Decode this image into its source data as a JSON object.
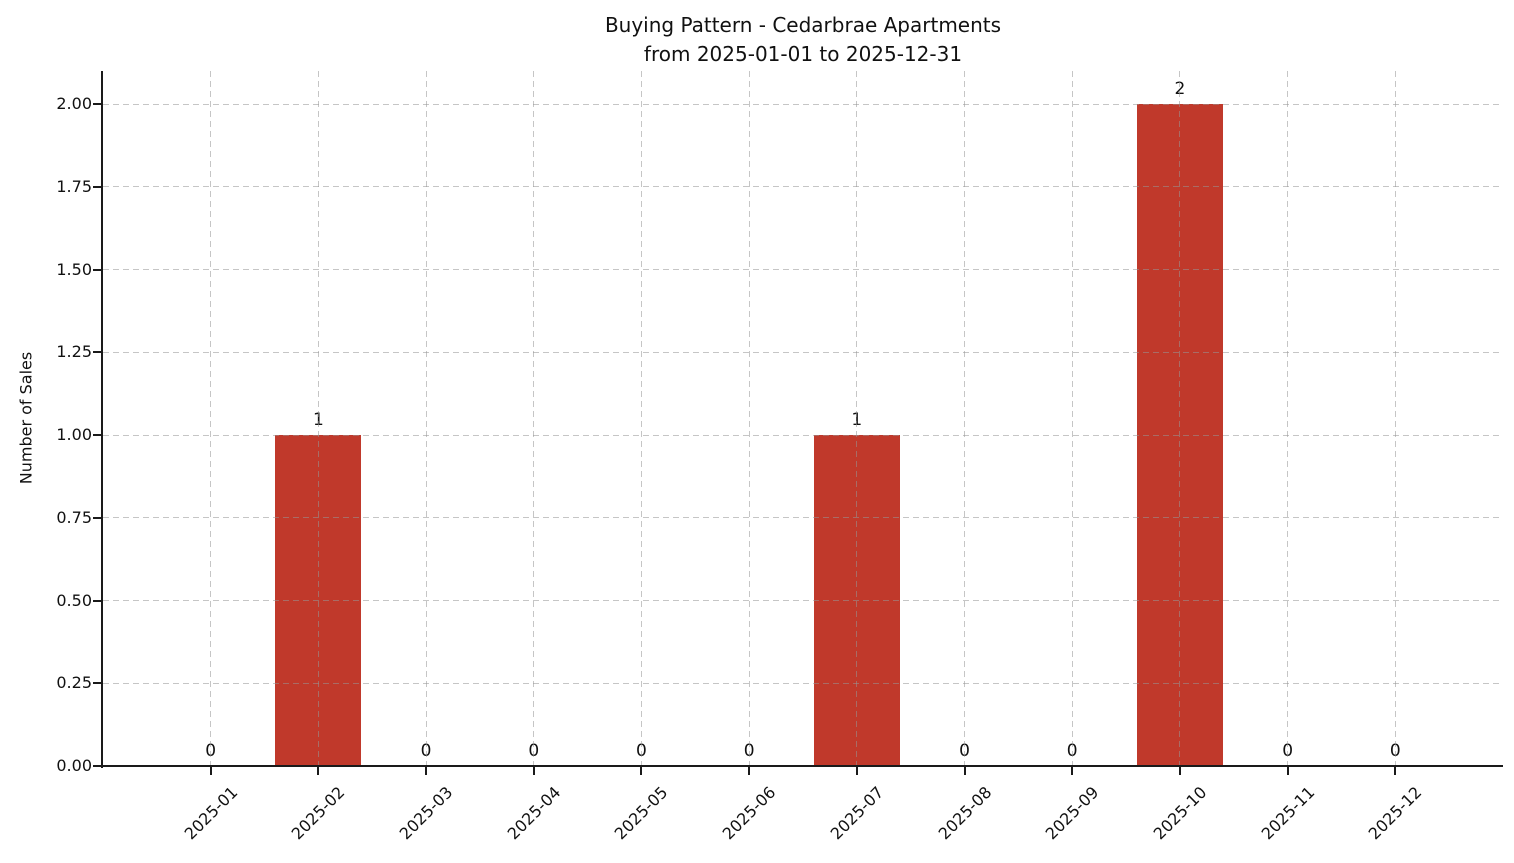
{
  "chart_data": {
    "type": "bar",
    "title_line1": "Buying Pattern - Cedarbrae Apartments",
    "title_line2": "from 2025-01-01 to 2025-12-31",
    "ylabel": "Number of Sales",
    "xlabel": "",
    "categories": [
      "2025-01",
      "2025-02",
      "2025-03",
      "2025-04",
      "2025-05",
      "2025-06",
      "2025-07",
      "2025-08",
      "2025-09",
      "2025-10",
      "2025-11",
      "2025-12"
    ],
    "values": [
      0,
      1,
      0,
      0,
      0,
      0,
      1,
      0,
      0,
      2,
      0,
      0
    ],
    "bar_value_labels": [
      "0",
      "1",
      "0",
      "0",
      "0",
      "0",
      "1",
      "0",
      "0",
      "2",
      "0",
      "0"
    ],
    "yticks": [
      0.0,
      0.25,
      0.5,
      0.75,
      1.0,
      1.25,
      1.5,
      1.75,
      2.0
    ],
    "ytick_labels": [
      "0.00",
      "0.25",
      "0.50",
      "0.75",
      "1.00",
      "1.25",
      "1.50",
      "1.75",
      "2.00"
    ],
    "ylim": [
      0,
      2.1
    ],
    "bar_color": "#c0392b",
    "grid": {
      "visible": true,
      "style": "dashed"
    },
    "legend_position": "none",
    "x_tick_rotation_deg": 45
  }
}
